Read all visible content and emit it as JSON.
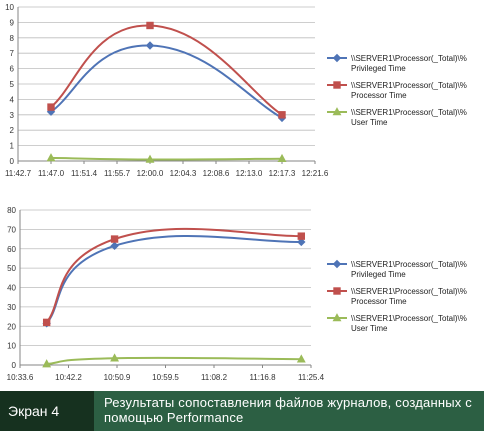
{
  "chart_data": [
    {
      "type": "line",
      "ylim": [
        0,
        10
      ],
      "yticks": [
        0,
        1,
        2,
        3,
        4,
        5,
        6,
        7,
        8,
        9,
        10
      ],
      "xticks": [
        "11:42.7",
        "11:47.0",
        "11:51.4",
        "11:55.7",
        "12:00.0",
        "12:04.3",
        "12:08.6",
        "12:13.0",
        "12:17.3",
        "12:21.6"
      ],
      "grid": "horizontal",
      "legend": "right",
      "series": [
        {
          "name": "\\\\SERVER1\\Processor(_Total)\\% Privileged Time",
          "color": "#4f74b6",
          "marker": "diamond",
          "x": [
            1,
            4,
            8
          ],
          "values": [
            3.2,
            7.5,
            2.8
          ]
        },
        {
          "name": "\\\\SERVER1\\Processor(_Total)\\% Processor Time",
          "color": "#c0504d",
          "marker": "square",
          "x": [
            1,
            4,
            8
          ],
          "values": [
            3.5,
            8.8,
            3.0
          ]
        },
        {
          "name": "\\\\SERVER1\\Processor(_Total)\\% User Time",
          "color": "#9bbb59",
          "marker": "triangle",
          "x": [
            1,
            4,
            8
          ],
          "values": [
            0.2,
            0.1,
            0.15
          ]
        }
      ]
    },
    {
      "type": "line",
      "ylim": [
        0,
        80
      ],
      "yticks": [
        0,
        10,
        20,
        30,
        40,
        50,
        60,
        70,
        80
      ],
      "xticks": [
        "10:33.6",
        "10:42.2",
        "10:50.9",
        "10:59.5",
        "11:08.2",
        "11:16.8",
        "11:25.4"
      ],
      "grid": "horizontal",
      "legend": "right",
      "series": [
        {
          "name": "\\\\SERVER1\\Processor(_Total)\\% Privileged Time",
          "color": "#4f74b6",
          "marker": "diamond",
          "x": [
            0.55,
            1.95,
            5.8
          ],
          "values": [
            21.5,
            61.5,
            63.5
          ]
        },
        {
          "name": "\\\\SERVER1\\Processor(_Total)\\% Processor Time",
          "color": "#c0504d",
          "marker": "square",
          "x": [
            0.55,
            1.95,
            5.8
          ],
          "values": [
            22,
            65,
            66.5
          ]
        },
        {
          "name": "\\\\SERVER1\\Processor(_Total)\\% User Time",
          "color": "#9bbb59",
          "marker": "triangle",
          "x": [
            0.55,
            1.95,
            5.8
          ],
          "values": [
            0.5,
            3.5,
            3.0
          ]
        }
      ]
    }
  ],
  "caption": {
    "label": "Экран 4",
    "text": "Результаты сопоставления файлов журналов, созданных с помощью Performance",
    "colors": {
      "bar": "#2c5f43",
      "label_bg": "#16311f",
      "text": "#ffffff"
    }
  }
}
